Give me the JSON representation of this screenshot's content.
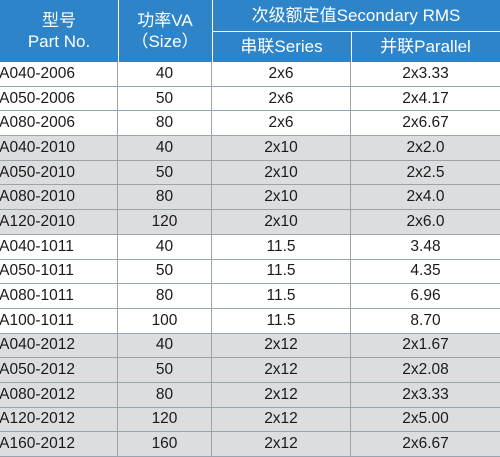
{
  "header": {
    "part_cn": "型号",
    "part_en": "Part No.",
    "power_cn": "功率VA",
    "power_en": "（Size）",
    "secondary": "次级额定值Secondary RMS",
    "series": "串联Series",
    "parallel": "并联Parallel"
  },
  "rows": [
    {
      "part": "-A040-2006",
      "power": "40",
      "series": "2x6",
      "parallel": "2x3.33",
      "shaded": false
    },
    {
      "part": "-A050-2006",
      "power": "50",
      "series": "2x6",
      "parallel": "2x4.17",
      "shaded": false
    },
    {
      "part": "-A080-2006",
      "power": "80",
      "series": "2x6",
      "parallel": "2x6.67",
      "shaded": false
    },
    {
      "part": "-A040-2010",
      "power": "40",
      "series": "2x10",
      "parallel": "2x2.0",
      "shaded": true
    },
    {
      "part": "-A050-2010",
      "power": "50",
      "series": "2x10",
      "parallel": "2x2.5",
      "shaded": true
    },
    {
      "part": "-A080-2010",
      "power": "80",
      "series": "2x10",
      "parallel": "2x4.0",
      "shaded": true
    },
    {
      "part": "-A120-2010",
      "power": "120",
      "series": "2x10",
      "parallel": "2x6.0",
      "shaded": true
    },
    {
      "part": "-A040-1011",
      "power": "40",
      "series": "11.5",
      "parallel": "3.48",
      "shaded": false
    },
    {
      "part": "-A050-1011",
      "power": "50",
      "series": "11.5",
      "parallel": "4.35",
      "shaded": false
    },
    {
      "part": "-A080-1011",
      "power": "80",
      "series": "11.5",
      "parallel": "6.96",
      "shaded": false
    },
    {
      "part": "-A100-1011",
      "power": "100",
      "series": "11.5",
      "parallel": "8.70",
      "shaded": false
    },
    {
      "part": "-A040-2012",
      "power": "40",
      "series": "2x12",
      "parallel": "2x1.67",
      "shaded": true
    },
    {
      "part": "-A050-2012",
      "power": "50",
      "series": "2x12",
      "parallel": "2x2.08",
      "shaded": true
    },
    {
      "part": "-A080-2012",
      "power": "80",
      "series": "2x12",
      "parallel": "2x3.33",
      "shaded": true
    },
    {
      "part": "-A120-2012",
      "power": "120",
      "series": "2x12",
      "parallel": "2x5.00",
      "shaded": true
    },
    {
      "part": "-A160-2012",
      "power": "160",
      "series": "2x12",
      "parallel": "2x6.67",
      "shaded": true
    }
  ]
}
